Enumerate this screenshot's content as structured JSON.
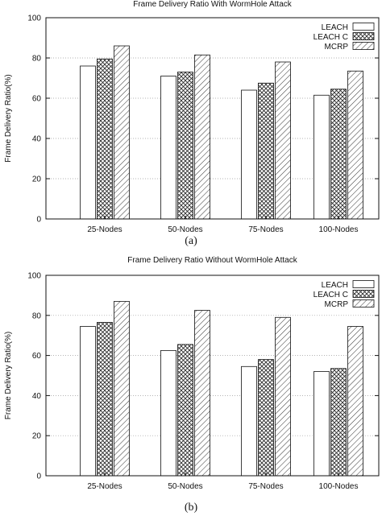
{
  "chart_data": [
    {
      "type": "bar",
      "title": "Frame Delivery Ratio With WormHole Attack",
      "ylabel": "Frame Delivery Ratio(%)",
      "xlabel": "",
      "ylim": [
        0,
        100
      ],
      "yticks": [
        0,
        20,
        40,
        60,
        80,
        100
      ],
      "grid": true,
      "legend_position": "top-right",
      "categories": [
        "25-Nodes",
        "50-Nodes",
        "75-Nodes",
        "100-Nodes"
      ],
      "series": [
        {
          "name": "LEACH",
          "pattern": "blank",
          "values": [
            76,
            71,
            64,
            61.5
          ]
        },
        {
          "name": "LEACH C",
          "pattern": "crosshatch",
          "values": [
            79.5,
            73,
            67.5,
            64.5
          ]
        },
        {
          "name": "MCRP",
          "pattern": "diagonal",
          "values": [
            86,
            81.5,
            78,
            73.5
          ]
        }
      ],
      "caption": "(a)"
    },
    {
      "type": "bar",
      "title": "Frame Delivery Ratio Without WormHole Attack",
      "ylabel": "Frame Delivery Ratio(%)",
      "xlabel": "",
      "ylim": [
        0,
        100
      ],
      "yticks": [
        0,
        20,
        40,
        60,
        80,
        100
      ],
      "grid": true,
      "legend_position": "top-right",
      "categories": [
        "25-Nodes",
        "50-Nodes",
        "75-Nodes",
        "100-Nodes"
      ],
      "series": [
        {
          "name": "LEACH",
          "pattern": "blank",
          "values": [
            74.5,
            62.5,
            54.5,
            52
          ]
        },
        {
          "name": "LEACH C",
          "pattern": "crosshatch",
          "values": [
            76.5,
            65.5,
            58,
            53.5
          ]
        },
        {
          "name": "MCRP",
          "pattern": "diagonal",
          "values": [
            87,
            82.5,
            79,
            74.5
          ]
        }
      ],
      "caption": "(b)"
    }
  ]
}
